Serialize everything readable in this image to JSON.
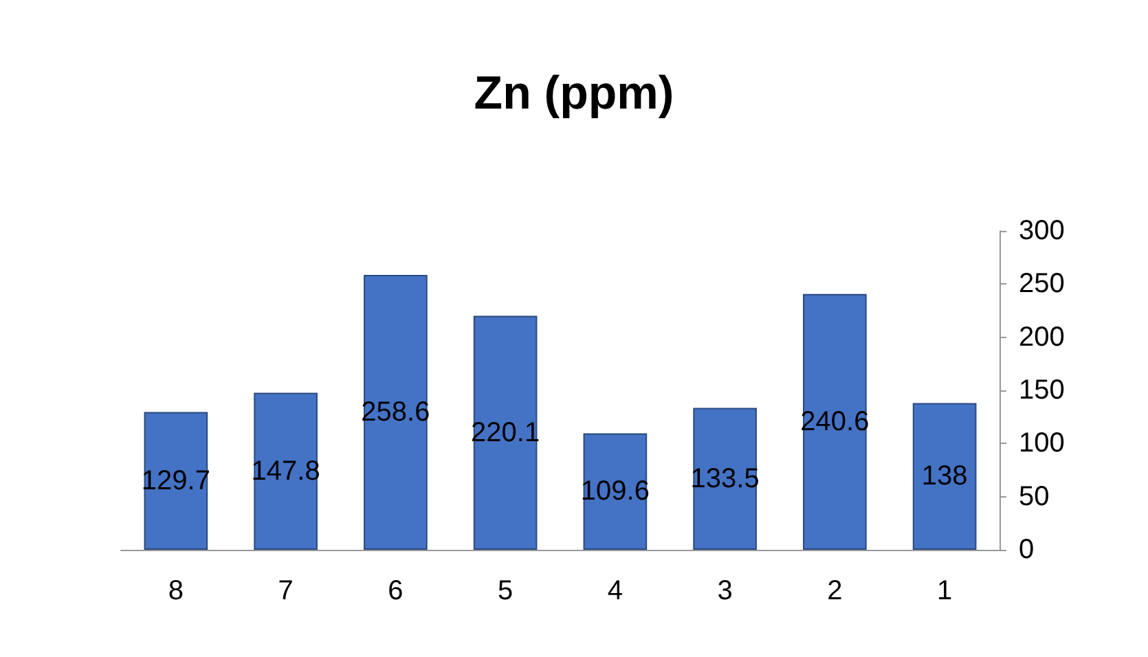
{
  "chart_data": {
    "type": "bar",
    "title": "Zn (ppm)",
    "categories": [
      "8",
      "7",
      "6",
      "5",
      "4",
      "3",
      "2",
      "1"
    ],
    "values": [
      129.7,
      147.8,
      258.6,
      220.1,
      109.6,
      133.5,
      240.6,
      138
    ],
    "color": "#4472c4",
    "ylim": [
      0,
      300
    ],
    "yticks": [
      0,
      50,
      100,
      150,
      200,
      250,
      300
    ],
    "data_labels": true,
    "grid": false
  }
}
